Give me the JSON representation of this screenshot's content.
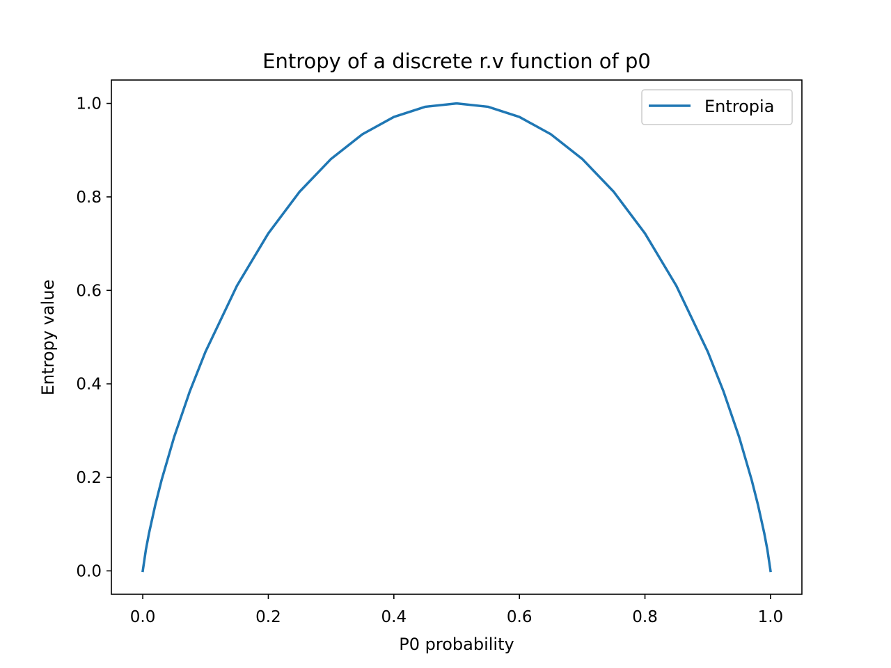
{
  "chart_data": {
    "type": "line",
    "title": "Entropy of a discrete r.v function of p0",
    "xlabel": "P0 probability",
    "ylabel": "Entropy value",
    "xlim": [
      -0.05,
      1.05
    ],
    "ylim": [
      -0.05,
      1.05
    ],
    "xticks": [
      0.0,
      0.2,
      0.4,
      0.6,
      0.8,
      1.0
    ],
    "xtick_labels": [
      "0.0",
      "0.2",
      "0.4",
      "0.6",
      "0.8",
      "1.0"
    ],
    "yticks": [
      0.0,
      0.2,
      0.4,
      0.6,
      0.8,
      1.0
    ],
    "ytick_labels": [
      "0.0",
      "0.2",
      "0.4",
      "0.6",
      "0.8",
      "1.0"
    ],
    "grid": false,
    "legend": {
      "placement": "top-right"
    },
    "series": [
      {
        "name": "Entropia",
        "color": "#1f77b4",
        "x": [
          0.0,
          0.005,
          0.01,
          0.02,
          0.03,
          0.05,
          0.075,
          0.1,
          0.15,
          0.2,
          0.25,
          0.3,
          0.35,
          0.4,
          0.45,
          0.5,
          0.55,
          0.6,
          0.65,
          0.7,
          0.75,
          0.8,
          0.85,
          0.9,
          0.925,
          0.95,
          0.97,
          0.98,
          0.99,
          0.995,
          1.0
        ],
        "y": [
          0.0,
          0.0454,
          0.0808,
          0.1414,
          0.1944,
          0.2864,
          0.3843,
          0.469,
          0.6098,
          0.7219,
          0.8113,
          0.8813,
          0.9341,
          0.971,
          0.9928,
          1.0,
          0.9928,
          0.971,
          0.9341,
          0.8813,
          0.8113,
          0.7219,
          0.6098,
          0.469,
          0.3843,
          0.2864,
          0.1944,
          0.1414,
          0.0808,
          0.0454,
          0.0
        ]
      }
    ]
  }
}
